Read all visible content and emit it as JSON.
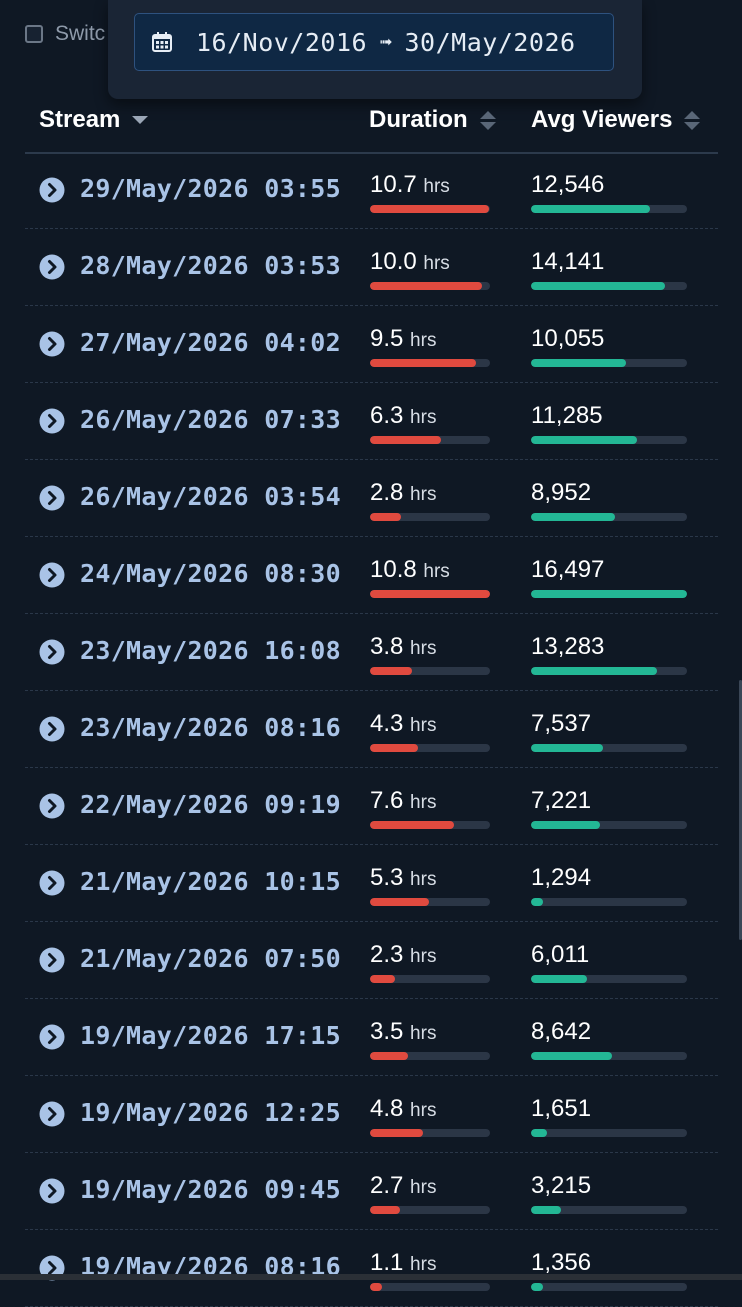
{
  "switch": {
    "label": "Switc"
  },
  "date_range": {
    "start": "16/Nov/2016",
    "arrow": "➟",
    "end": "30/May/2026",
    "icon": "calendar-icon"
  },
  "table": {
    "headers": {
      "stream": "Stream",
      "duration": "Duration",
      "avg_viewers": "Avg Viewers"
    },
    "unit": "hrs",
    "rows": [
      {
        "date": "29/May/2026 03:55",
        "duration": "10.7",
        "duration_frac": 0.99,
        "viewers": "12,546",
        "viewers_frac": 0.76
      },
      {
        "date": "28/May/2026 03:53",
        "duration": "10.0",
        "duration_frac": 0.93,
        "viewers": "14,141",
        "viewers_frac": 0.86
      },
      {
        "date": "27/May/2026 04:02",
        "duration": "9.5",
        "duration_frac": 0.88,
        "viewers": "10,055",
        "viewers_frac": 0.61
      },
      {
        "date": "26/May/2026 07:33",
        "duration": "6.3",
        "duration_frac": 0.59,
        "viewers": "11,285",
        "viewers_frac": 0.68
      },
      {
        "date": "26/May/2026 03:54",
        "duration": "2.8",
        "duration_frac": 0.26,
        "viewers": "8,952",
        "viewers_frac": 0.54
      },
      {
        "date": "24/May/2026 08:30",
        "duration": "10.8",
        "duration_frac": 1.0,
        "viewers": "16,497",
        "viewers_frac": 1.0
      },
      {
        "date": "23/May/2026 16:08",
        "duration": "3.8",
        "duration_frac": 0.35,
        "viewers": "13,283",
        "viewers_frac": 0.81
      },
      {
        "date": "23/May/2026 08:16",
        "duration": "4.3",
        "duration_frac": 0.4,
        "viewers": "7,537",
        "viewers_frac": 0.46
      },
      {
        "date": "22/May/2026 09:19",
        "duration": "7.6",
        "duration_frac": 0.7,
        "viewers": "7,221",
        "viewers_frac": 0.44
      },
      {
        "date": "21/May/2026 10:15",
        "duration": "5.3",
        "duration_frac": 0.49,
        "viewers": "1,294",
        "viewers_frac": 0.08
      },
      {
        "date": "21/May/2026 07:50",
        "duration": "2.3",
        "duration_frac": 0.21,
        "viewers": "6,011",
        "viewers_frac": 0.36
      },
      {
        "date": "19/May/2026 17:15",
        "duration": "3.5",
        "duration_frac": 0.32,
        "viewers": "8,642",
        "viewers_frac": 0.52
      },
      {
        "date": "19/May/2026 12:25",
        "duration": "4.8",
        "duration_frac": 0.44,
        "viewers": "1,651",
        "viewers_frac": 0.1
      },
      {
        "date": "19/May/2026 09:45",
        "duration": "2.7",
        "duration_frac": 0.25,
        "viewers": "3,215",
        "viewers_frac": 0.19
      },
      {
        "date": "19/May/2026 08:16",
        "duration": "1.1",
        "duration_frac": 0.1,
        "viewers": "1,356",
        "viewers_frac": 0.08
      }
    ]
  },
  "colors": {
    "duration_bar": "#e04a3f",
    "viewers_bar": "#23b795",
    "stream_link": "#a9c3e6",
    "background": "#0f1824"
  }
}
